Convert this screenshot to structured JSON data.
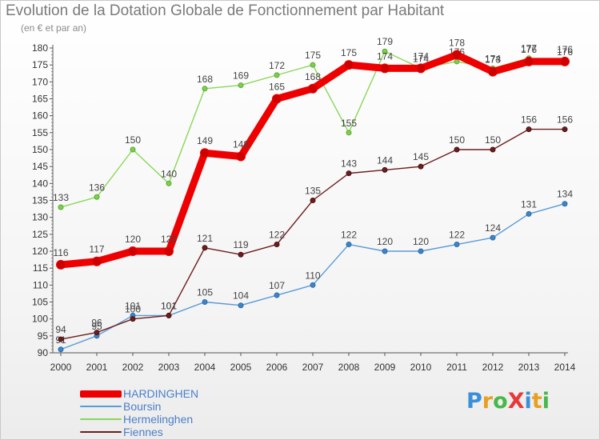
{
  "title": "Evolution de la Dotation Globale de Fonctionnement par Habitant",
  "subtitle": "(en € et par an)",
  "logo": {
    "text": "ProXiti",
    "colors": [
      "#3a8fd8",
      "#e8a020",
      "#48b848",
      "#e83838",
      "#3a8fd8",
      "#e8a020",
      "#48b848"
    ]
  },
  "chart_data": {
    "type": "line",
    "title": "Evolution de la Dotation Globale de Fonctionnement par Habitant",
    "ylabel": "(en € et par an)",
    "xlabel": "",
    "x": [
      "2000",
      "2001",
      "2002",
      "2003",
      "2004",
      "2005",
      "2006",
      "2007",
      "2008",
      "2009",
      "2010",
      "2011",
      "2012",
      "2013",
      "2014"
    ],
    "ylim": [
      90,
      180
    ],
    "yticks": [
      90,
      95,
      100,
      105,
      110,
      115,
      120,
      125,
      130,
      135,
      140,
      145,
      150,
      155,
      160,
      165,
      170,
      175,
      180
    ],
    "grid": false,
    "legend_position": "bottom-left",
    "series": [
      {
        "name": "HARDINGHEN",
        "color": "#ee0000",
        "values": [
          116,
          117,
          120,
          120,
          149,
          148,
          165,
          168,
          175,
          174,
          174,
          178,
          173,
          176,
          176
        ],
        "labels": [
          "116",
          "117",
          "120",
          "120",
          "149",
          "148",
          "165",
          "168",
          "175",
          "174",
          "174",
          "178",
          "173",
          "176",
          "176"
        ]
      },
      {
        "name": "Boursin",
        "color": "#5b9bd5",
        "values": [
          91,
          95,
          101,
          101,
          105,
          104,
          107,
          110,
          122,
          120,
          120,
          122,
          124,
          131,
          134
        ],
        "labels": [
          "91",
          "95",
          "101",
          "101",
          "105",
          "104",
          "107",
          "110",
          "122",
          "120",
          "120",
          "122",
          "124",
          "131",
          "134"
        ]
      },
      {
        "name": "Hermelinghen",
        "color": "#88d858",
        "values": [
          133,
          136,
          150,
          140,
          168,
          169,
          172,
          175,
          155,
          179,
          174,
          176,
          174,
          177,
          176
        ],
        "labels": [
          "133",
          "136",
          "150",
          "140",
          "168",
          "169",
          "172",
          "175",
          "155",
          "179",
          "174",
          "176",
          "174",
          "177",
          "176"
        ]
      },
      {
        "name": "Fiennes",
        "color": "#6b1e1e",
        "values": [
          94,
          96,
          100,
          101,
          121,
          119,
          122,
          135,
          143,
          144,
          145,
          150,
          150,
          156,
          156
        ],
        "labels": [
          "94",
          "96",
          "100",
          "101",
          "121",
          "119",
          "122",
          "135",
          "143",
          "144",
          "145",
          "150",
          "150",
          "156",
          "156"
        ]
      }
    ]
  }
}
